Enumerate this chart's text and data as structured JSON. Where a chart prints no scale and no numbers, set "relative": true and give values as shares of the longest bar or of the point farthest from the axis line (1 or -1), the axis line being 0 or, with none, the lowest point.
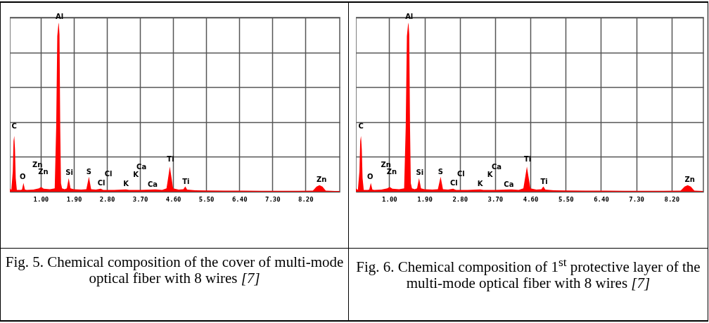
{
  "chart_data": [
    {
      "type": "area",
      "title": "Fig. 5. Chemical composition of the cover of multi-mode optical fiber with 8 wires [7]",
      "relative": true,
      "grid": true,
      "tick_labels": "x",
      "xlim": [
        0.16,
        9.13
      ],
      "xticks": [
        {
          "value": 1,
          "label": "1.00"
        },
        {
          "value": 1.9,
          "label": "1.90"
        },
        {
          "value": 2.8,
          "label": "2.80"
        },
        {
          "value": 3.7,
          "label": "3.70"
        },
        {
          "value": 4.6,
          "label": "4.60"
        },
        {
          "value": 5.5,
          "label": "5.50"
        },
        {
          "value": 6.4,
          "label": "6.40"
        },
        {
          "value": 7.3,
          "label": "7.30"
        },
        {
          "value": 8.2,
          "label": "8.20"
        }
      ],
      "series": [
        {
          "color": "#ff0000",
          "x": [
            0.16,
            0.2,
            0.24,
            0.26,
            0.28,
            0.3,
            0.32,
            0.35,
            0.45,
            0.49,
            0.53,
            0.57,
            0.62,
            0.8,
            0.95,
            1.01,
            1.08,
            1.25,
            1.38,
            1.42,
            1.45,
            1.48,
            1.49,
            1.51,
            1.53,
            1.55,
            1.58,
            1.65,
            1.71,
            1.76,
            1.81,
            1.9,
            2.1,
            2.24,
            2.31,
            2.37,
            2.5,
            2.63,
            2.7,
            3.0,
            3.32,
            3.4,
            3.7,
            4.12,
            4.3,
            4.42,
            4.47,
            4.51,
            4.55,
            4.6,
            4.75,
            4.88,
            4.93,
            4.98,
            5.2,
            5.5,
            6.0,
            6.5,
            7.0,
            7.5,
            8.0,
            8.4,
            8.5,
            8.58,
            8.66,
            8.75,
            9.0,
            9.13
          ],
          "values": [
            0.02,
            0.01,
            0.12,
            0.3,
            0.33,
            0.25,
            0.08,
            0.01,
            0.01,
            0.012,
            0.052,
            0.012,
            0.01,
            0.012,
            0.02,
            0.028,
            0.018,
            0.015,
            0.02,
            0.38,
            0.92,
            0.99,
            1.0,
            0.93,
            0.38,
            0.05,
            0.02,
            0.015,
            0.02,
            0.08,
            0.02,
            0.015,
            0.012,
            0.015,
            0.088,
            0.015,
            0.012,
            0.018,
            0.01,
            0.01,
            0.014,
            0.01,
            0.01,
            0.014,
            0.01,
            0.02,
            0.09,
            0.148,
            0.09,
            0.02,
            0.012,
            0.015,
            0.031,
            0.012,
            0.008,
            0.007,
            0.006,
            0.006,
            0.005,
            0.005,
            0.005,
            0.006,
            0.03,
            0.038,
            0.03,
            0.006,
            0.004,
            0.004
          ]
        }
      ],
      "annotations": [
        {
          "text": "Al",
          "x": 1.49,
          "y": 1.0
        },
        {
          "text": "C",
          "x": 0.28,
          "y": 0.33
        },
        {
          "text": "O",
          "x": 0.53,
          "y": 0.052
        },
        {
          "text": "Zn",
          "x": 0.95,
          "y": 0.02
        },
        {
          "text": "Zn",
          "x": 1.01,
          "y": 0.028
        },
        {
          "text": "Si",
          "x": 1.76,
          "y": 0.08
        },
        {
          "text": "S",
          "x": 2.31,
          "y": 0.088
        },
        {
          "text": "Cl",
          "x": 2.63,
          "y": 0.018
        },
        {
          "text": "Cl",
          "x": 2.63,
          "y": 0.018
        },
        {
          "text": "K",
          "x": 3.32,
          "y": 0.014
        },
        {
          "text": "K",
          "x": 3.32,
          "y": 0.014
        },
        {
          "text": "Ca",
          "x": 3.7,
          "y": 0.01
        },
        {
          "text": "Ca",
          "x": 4.12,
          "y": 0.014
        },
        {
          "text": "Ti",
          "x": 4.51,
          "y": 0.148
        },
        {
          "text": "Ti",
          "x": 4.93,
          "y": 0.031
        },
        {
          "text": "Zn",
          "x": 8.58,
          "y": 0.038
        }
      ]
    },
    {
      "type": "area",
      "title": "Fig. 6. Chemical composition of 1$^{st}$ protective layer of the multi-mode optical fiber with 8 wires [7]",
      "relative": true,
      "grid": true,
      "tick_labels": "x",
      "xlim": [
        0.15,
        9.01
      ],
      "xticks": [
        {
          "value": 1,
          "label": "1.00"
        },
        {
          "value": 1.9,
          "label": "1.90"
        },
        {
          "value": 2.8,
          "label": "2.80"
        },
        {
          "value": 3.7,
          "label": "3.70"
        },
        {
          "value": 4.6,
          "label": "4.60"
        },
        {
          "value": 5.5,
          "label": "5.50"
        },
        {
          "value": 6.4,
          "label": "6.40"
        },
        {
          "value": 7.3,
          "label": "7.30"
        },
        {
          "value": 8.2,
          "label": "8.20"
        }
      ],
      "series": [
        {
          "color": "#ff0000",
          "x": [
            0.15,
            0.2,
            0.24,
            0.26,
            0.28,
            0.3,
            0.32,
            0.35,
            0.45,
            0.49,
            0.53,
            0.57,
            0.62,
            0.8,
            0.95,
            1.01,
            1.08,
            1.25,
            1.38,
            1.42,
            1.45,
            1.48,
            1.49,
            1.51,
            1.53,
            1.55,
            1.58,
            1.65,
            1.71,
            1.76,
            1.81,
            1.9,
            2.1,
            2.24,
            2.31,
            2.37,
            2.5,
            2.63,
            2.7,
            3.0,
            3.32,
            3.4,
            3.7,
            4.12,
            4.3,
            4.42,
            4.47,
            4.51,
            4.55,
            4.6,
            4.75,
            4.88,
            4.93,
            4.98,
            5.2,
            5.5,
            6.0,
            6.5,
            7.0,
            7.5,
            8.0,
            8.43,
            8.53,
            8.61,
            8.69,
            8.78,
            9.0
          ],
          "values": [
            0.02,
            0.01,
            0.12,
            0.3,
            0.33,
            0.25,
            0.08,
            0.01,
            0.01,
            0.012,
            0.052,
            0.012,
            0.01,
            0.012,
            0.02,
            0.028,
            0.018,
            0.015,
            0.02,
            0.38,
            0.92,
            0.99,
            1.0,
            0.93,
            0.38,
            0.05,
            0.02,
            0.015,
            0.02,
            0.08,
            0.02,
            0.015,
            0.012,
            0.015,
            0.088,
            0.015,
            0.012,
            0.018,
            0.01,
            0.01,
            0.014,
            0.01,
            0.01,
            0.014,
            0.01,
            0.02,
            0.09,
            0.148,
            0.09,
            0.02,
            0.012,
            0.015,
            0.031,
            0.012,
            0.008,
            0.007,
            0.006,
            0.006,
            0.005,
            0.005,
            0.005,
            0.006,
            0.03,
            0.038,
            0.03,
            0.006,
            0.004
          ]
        }
      ],
      "annotations": [
        {
          "text": "Al",
          "x": 1.49,
          "y": 1.0
        },
        {
          "text": "C",
          "x": 0.28,
          "y": 0.33
        },
        {
          "text": "O",
          "x": 0.53,
          "y": 0.052
        },
        {
          "text": "Zn",
          "x": 0.95,
          "y": 0.02
        },
        {
          "text": "Zn",
          "x": 1.01,
          "y": 0.028
        },
        {
          "text": "Si",
          "x": 1.76,
          "y": 0.08
        },
        {
          "text": "S",
          "x": 2.31,
          "y": 0.088
        },
        {
          "text": "Cl",
          "x": 2.63,
          "y": 0.018
        },
        {
          "text": "Cl",
          "x": 2.63,
          "y": 0.018
        },
        {
          "text": "K",
          "x": 3.32,
          "y": 0.014
        },
        {
          "text": "K",
          "x": 3.32,
          "y": 0.014
        },
        {
          "text": "Ca",
          "x": 3.7,
          "y": 0.01
        },
        {
          "text": "Ca",
          "x": 4.12,
          "y": 0.014
        },
        {
          "text": "Ti",
          "x": 4.51,
          "y": 0.148
        },
        {
          "text": "Ti",
          "x": 4.93,
          "y": 0.031
        },
        {
          "text": "Zn",
          "x": 8.61,
          "y": 0.038
        }
      ]
    }
  ]
}
